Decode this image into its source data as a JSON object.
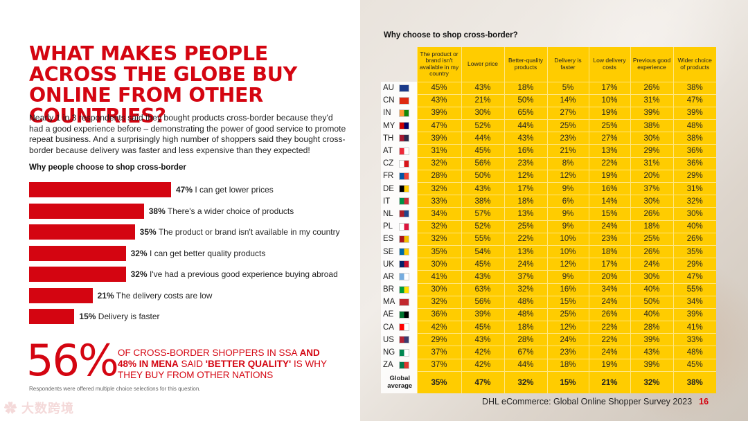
{
  "headline": "WHAT MAKES PEOPLE ACROSS THE GLOBE BUY ONLINE FROM OTHER COUNTRIES?",
  "intro": "Nearly 1 in 3 respondents said they bought products cross-border because they'd had a good experience before – demonstrating the power of good service to promote repeat business. And a surprisingly high number of shoppers said they bought cross-border because delivery was faster and less expensive than they expected!",
  "bar_chart": {
    "title": "Why people choose to shop cross-border",
    "items": [
      {
        "pct": "47%",
        "value": 47,
        "label": "I can get lower prices"
      },
      {
        "pct": "38%",
        "value": 38,
        "label": "There's a wider choice of products"
      },
      {
        "pct": "35%",
        "value": 35,
        "label": "The product or brand isn't available in my country"
      },
      {
        "pct": "32%",
        "value": 32,
        "label": "I can get better quality products"
      },
      {
        "pct": "32%",
        "value": 32,
        "label": "I've had a previous good experience buying abroad"
      },
      {
        "pct": "21%",
        "value": 21,
        "label": "The delivery costs are low"
      },
      {
        "pct": "15%",
        "value": 15,
        "label": "Delivery is faster"
      }
    ]
  },
  "highlight": {
    "pct": "56%",
    "text_a": "OF CROSS-BORDER SHOPPERS IN SSA ",
    "text_b": "AND 48% IN MENA",
    "text_c": " SAID ",
    "text_d": "'BETTER QUALITY'",
    "text_e": " IS WHY THEY BUY FROM OTHER NATIONS"
  },
  "footnote": "Respondents were offered multiple choice selections for this question.",
  "watermark": "大数跨境",
  "table": {
    "title": "Why choose to shop cross-border?",
    "columns": [
      "The product or brand isn't available in my country",
      "Lower price",
      "Better-quality products",
      "Delivery is faster",
      "Low delivery costs",
      "Previous good experience",
      "Wider choice of products"
    ],
    "rows": [
      {
        "country": "AU",
        "values": [
          "45%",
          "43%",
          "18%",
          "5%",
          "17%",
          "26%",
          "38%"
        ]
      },
      {
        "country": "CN",
        "values": [
          "43%",
          "21%",
          "50%",
          "14%",
          "10%",
          "31%",
          "47%"
        ]
      },
      {
        "country": "IN",
        "values": [
          "39%",
          "30%",
          "65%",
          "27%",
          "19%",
          "39%",
          "39%"
        ]
      },
      {
        "country": "MY",
        "values": [
          "47%",
          "52%",
          "44%",
          "25%",
          "25%",
          "38%",
          "48%"
        ]
      },
      {
        "country": "TH",
        "values": [
          "39%",
          "44%",
          "43%",
          "23%",
          "27%",
          "30%",
          "38%"
        ]
      },
      {
        "country": "AT",
        "values": [
          "31%",
          "45%",
          "16%",
          "21%",
          "13%",
          "29%",
          "36%"
        ]
      },
      {
        "country": "CZ",
        "values": [
          "32%",
          "56%",
          "23%",
          "8%",
          "22%",
          "31%",
          "36%"
        ]
      },
      {
        "country": "FR",
        "values": [
          "28%",
          "50%",
          "12%",
          "12%",
          "19%",
          "20%",
          "29%"
        ]
      },
      {
        "country": "DE",
        "values": [
          "32%",
          "43%",
          "17%",
          "9%",
          "16%",
          "37%",
          "31%"
        ]
      },
      {
        "country": "IT",
        "values": [
          "33%",
          "38%",
          "18%",
          "6%",
          "14%",
          "30%",
          "32%"
        ]
      },
      {
        "country": "NL",
        "values": [
          "34%",
          "57%",
          "13%",
          "9%",
          "15%",
          "26%",
          "30%"
        ]
      },
      {
        "country": "PL",
        "values": [
          "32%",
          "52%",
          "25%",
          "9%",
          "24%",
          "18%",
          "40%"
        ]
      },
      {
        "country": "ES",
        "values": [
          "32%",
          "55%",
          "22%",
          "10%",
          "23%",
          "25%",
          "26%"
        ]
      },
      {
        "country": "SE",
        "values": [
          "35%",
          "54%",
          "13%",
          "10%",
          "18%",
          "26%",
          "35%"
        ]
      },
      {
        "country": "UK",
        "values": [
          "30%",
          "45%",
          "24%",
          "12%",
          "17%",
          "24%",
          "29%"
        ]
      },
      {
        "country": "AR",
        "values": [
          "41%",
          "43%",
          "37%",
          "9%",
          "20%",
          "30%",
          "47%"
        ]
      },
      {
        "country": "BR",
        "values": [
          "30%",
          "63%",
          "32%",
          "16%",
          "34%",
          "40%",
          "55%"
        ]
      },
      {
        "country": "MA",
        "values": [
          "32%",
          "56%",
          "48%",
          "15%",
          "24%",
          "50%",
          "34%"
        ]
      },
      {
        "country": "AE",
        "values": [
          "36%",
          "39%",
          "48%",
          "25%",
          "26%",
          "40%",
          "39%"
        ]
      },
      {
        "country": "CA",
        "values": [
          "42%",
          "45%",
          "18%",
          "12%",
          "22%",
          "28%",
          "41%"
        ]
      },
      {
        "country": "US",
        "values": [
          "29%",
          "43%",
          "28%",
          "24%",
          "22%",
          "39%",
          "33%"
        ]
      },
      {
        "country": "NG",
        "values": [
          "37%",
          "42%",
          "67%",
          "23%",
          "24%",
          "43%",
          "48%"
        ]
      },
      {
        "country": "ZA",
        "values": [
          "37%",
          "42%",
          "44%",
          "18%",
          "19%",
          "39%",
          "45%"
        ]
      }
    ],
    "global": {
      "label": "Global average",
      "values": [
        "35%",
        "47%",
        "32%",
        "15%",
        "21%",
        "32%",
        "38%"
      ]
    }
  },
  "credit": "DHL eCommerce: Global Online Shopper Survey 2023",
  "page_number": "16",
  "colors": {
    "accent": "#d40511",
    "table_fill": "#ffcc00"
  }
}
